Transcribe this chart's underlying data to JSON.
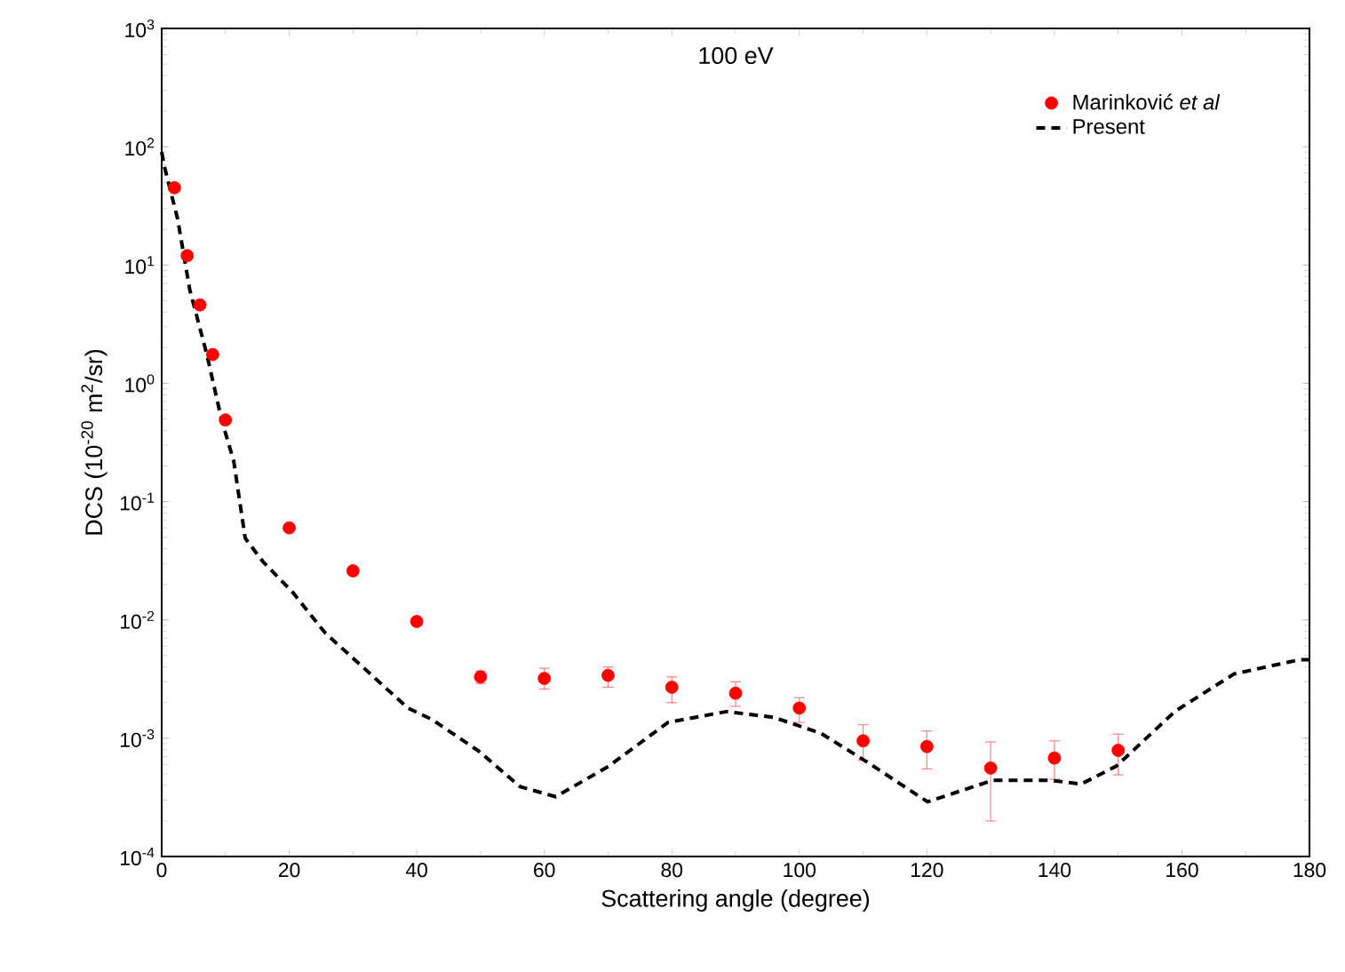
{
  "chart_data": {
    "type": "scatter",
    "title": "100 eV",
    "xlabel": "Scattering angle (degree)",
    "ylabel": "DCS (10$^{-20}$ m$^{2}$/sr)",
    "log": "y",
    "xlim": [
      0,
      180
    ],
    "ylim": [
      0.0001,
      1000
    ],
    "xticks": [
      0,
      20,
      40,
      60,
      80,
      100,
      120,
      140,
      160,
      180
    ],
    "yticks": [
      {
        "value": 0.0001,
        "label": "10$^{-4}$"
      },
      {
        "value": 0.001,
        "label": "10$^{-3}$"
      },
      {
        "value": 0.01,
        "label": "10$^{-2}$"
      },
      {
        "value": 0.1,
        "label": "10$^{-1}$"
      },
      {
        "value": 1,
        "label": "10$^{0}$"
      },
      {
        "value": 10,
        "label": "10$^{1}$"
      },
      {
        "value": 100,
        "label": "10$^{2}$"
      },
      {
        "value": 1000,
        "label": "10$^{3}$"
      }
    ],
    "legend": "top right",
    "grid": false,
    "series": [
      {
        "name": "Marinković *et al*",
        "color": "#ff0000",
        "x": [
          2,
          4,
          6,
          8,
          10,
          20,
          30,
          40,
          50,
          60,
          70,
          80,
          90,
          100,
          110,
          120,
          130,
          140,
          150
        ],
        "values": [
          45,
          12,
          4.6,
          1.75,
          0.49,
          0.06,
          0.026,
          0.0097,
          0.0033,
          0.0032,
          0.0034,
          0.0027,
          0.0024,
          0.0018,
          0.00095,
          0.00085,
          0.00056,
          0.00068,
          0.00079
        ],
        "errors": [
          null,
          null,
          null,
          null,
          null,
          null,
          null,
          null,
          [
            0.0029,
            0.0037
          ],
          [
            0.0026,
            0.0039
          ],
          [
            0.0027,
            0.004
          ],
          [
            0.002,
            0.0033
          ],
          [
            0.00186,
            0.003
          ],
          [
            0.00136,
            0.0022
          ],
          [
            0.00065,
            0.0013
          ],
          [
            0.00055,
            0.00115
          ],
          [
            0.0002,
            0.00093
          ],
          [
            0.00045,
            0.00095
          ],
          [
            0.00049,
            0.00108
          ]
        ]
      },
      {
        "name": "Present",
        "type": "line",
        "line_style": "dashed",
        "marker": "none",
        "color": "#000000",
        "x": [
          0,
          0.4,
          2.5,
          4.4,
          7.1,
          9.4,
          11.3,
          13.1,
          15.9,
          20.6,
          25.6,
          38.6,
          42.3,
          49.7,
          56.2,
          61.8,
          70.1,
          79.4,
          88.6,
          96,
          103.4,
          110.8,
          120.1,
          130.3,
          139.5,
          144.2,
          149.7,
          159,
          168.2,
          178.4,
          180
        ],
        "values": [
          90,
          69,
          24.5,
          6.2,
          1.74,
          0.49,
          0.22,
          0.049,
          0.031,
          0.017,
          0.0078,
          0.0018,
          0.00145,
          0.00078,
          0.00039,
          0.00032,
          0.00058,
          0.00136,
          0.00168,
          0.0015,
          0.0011,
          0.00062,
          0.00029,
          0.00044,
          0.00044,
          0.00041,
          0.00058,
          0.0017,
          0.0035,
          0.0046,
          0.0046
        ]
      }
    ]
  }
}
